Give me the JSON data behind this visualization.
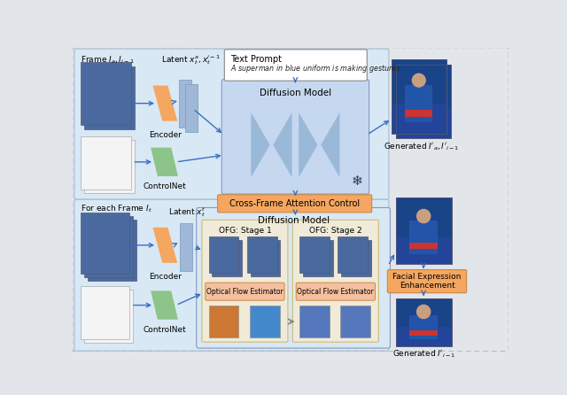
{
  "bg_color": "#e2e6ea",
  "top_section_bg": "#d8e8f4",
  "bottom_section_bg": "#d8e8f4",
  "ofg_section_bg": "#f0ead8",
  "encoder_color": "#f5a660",
  "controlnet_color": "#8cc48a",
  "latent_color": "#a0b8d8",
  "diffusion_color": "#c5d8f0",
  "hourglass_color": "#9ab8d8",
  "cross_frame_color": "#f5a660",
  "facial_expr_color": "#f5a660",
  "arrow_color": "#3a6fc4",
  "text_prompt_label": "Text Prompt",
  "text_prompt_text": "A superman in blue uniform is making gestures",
  "frame_label_top": "Frame $I_a, I_{i-1}$",
  "latent_label_top": "Latent $x_t^a, x_t^{i-1}$",
  "encoder_label": "Encoder",
  "controlnet_label": "ControlNet",
  "diffusion_model_label": "Diffusion Model",
  "cross_frame_label": "Cross-Frame Attention Control",
  "frame_label_bottom": "For each Frame $I_t$",
  "latent_label_bottom": "Latent $x_t^t$",
  "ofg_stage1_label": "OFG: Stage 1",
  "ofg_stage2_label": "OFG: Stage 2",
  "optical_flow_label": "Optical Flow Estimator",
  "generated_top_label": "Generated $I'_a, I'_{i-1}$",
  "generated_middle_label": "",
  "generated_bottom_label": "Generated $I'_{i-1}$",
  "facial_expr_label": "Facial Expression\nEnhancement",
  "superman_blue": "#2255aa",
  "superman_skin": "#c8a080",
  "superman_red": "#cc3333",
  "photo_bg": "#3366aa",
  "sketch_bg": "#f4f4f4",
  "sketch_line": "#cccccc"
}
